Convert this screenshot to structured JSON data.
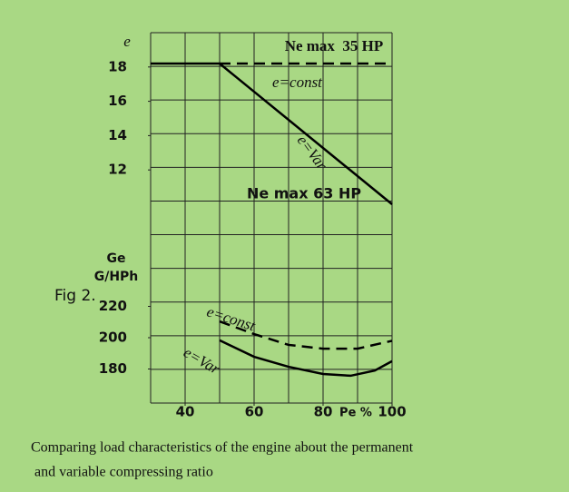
{
  "figure_label": "Fig 2.",
  "caption": [
    "Comparing load characteristics of the engine about the permanent",
    "and variable compressing ratio"
  ],
  "chart_data": [
    {
      "type": "line",
      "y_label": "e",
      "annotations": [
        "Ne max  35 HP",
        "Ne max 63 HP"
      ],
      "xlim": [
        30,
        100
      ],
      "ylim": [
        10,
        20
      ],
      "yticks": [
        12,
        14,
        16,
        18
      ],
      "series": [
        {
          "name": "e=const",
          "color": "#000000",
          "dashed": true,
          "x": [
            50,
            100
          ],
          "values": [
            18.2,
            18.2
          ]
        },
        {
          "name": "e=Var",
          "color": "#000000",
          "dashed": false,
          "x": [
            30,
            50,
            100
          ],
          "values": [
            18.2,
            18.2,
            10
          ]
        }
      ]
    },
    {
      "type": "line",
      "y_label": [
        "Ge",
        "G/HPh"
      ],
      "x_label": "Pe %",
      "xlim": [
        30,
        100
      ],
      "xticks": [
        40,
        60,
        80,
        100
      ],
      "ylim": [
        160,
        240
      ],
      "yticks": [
        180,
        200,
        220
      ],
      "series": [
        {
          "name": "e=const",
          "color": "#000000",
          "dashed": true,
          "x": [
            50,
            60,
            70,
            80,
            90,
            100
          ],
          "values": [
            210.4,
            202.3,
            195.4,
            193,
            193,
            198
          ]
        },
        {
          "name": "e=Var",
          "color": "#000000",
          "dashed": false,
          "x": [
            50,
            60,
            70,
            80,
            88,
            95,
            100
          ],
          "values": [
            198.3,
            187.8,
            181.4,
            176.8,
            175.7,
            179,
            185
          ]
        }
      ]
    }
  ]
}
